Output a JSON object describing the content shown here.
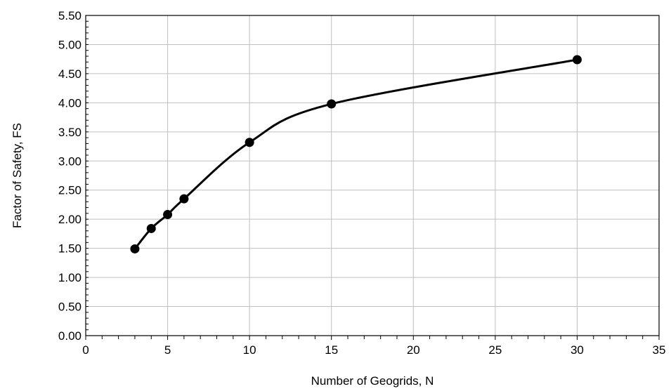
{
  "chart_data": {
    "type": "scatter",
    "title": "",
    "xlabel": "Number of Geogrids, N",
    "ylabel": "Factor of Safety, FS",
    "xlim": [
      0,
      35
    ],
    "ylim": [
      0,
      5.5
    ],
    "x_ticks": [
      "0",
      "5",
      "10",
      "15",
      "20",
      "25",
      "30",
      "35"
    ],
    "y_ticks": [
      "0.00",
      "0.50",
      "1.00",
      "1.50",
      "2.00",
      "2.50",
      "3.00",
      "3.50",
      "4.00",
      "4.50",
      "5.00",
      "5.50"
    ],
    "grid": true,
    "legend": "none",
    "smooth_line": true,
    "series": [
      {
        "x": [
          3,
          4,
          5,
          6,
          10,
          15,
          30
        ],
        "y": [
          1.49,
          1.84,
          2.08,
          2.35,
          3.32,
          3.98,
          4.74
        ],
        "color": "#000000",
        "marker": "circle"
      }
    ]
  }
}
